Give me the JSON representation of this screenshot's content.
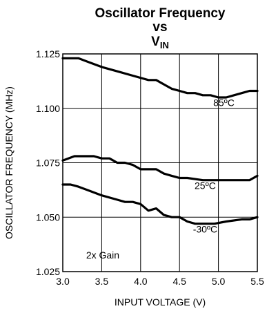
{
  "chart_data": {
    "type": "line",
    "title_line1": "Oscillator Frequency",
    "title_line2": "vs",
    "title_line3_main": "V",
    "title_line3_sub": "IN",
    "xlabel": "INPUT VOLTAGE (V)",
    "ylabel": "OSCILLATOR FREQUENCY (MHz)",
    "xlim": [
      3.0,
      5.5
    ],
    "ylim": [
      1.025,
      1.125
    ],
    "xticks": [
      "3.0",
      "3.5",
      "4.0",
      "4.5",
      "5.0",
      "5.5"
    ],
    "yticks": [
      "1.025",
      "1.050",
      "1.075",
      "1.100",
      "1.125"
    ],
    "grid": true,
    "annotation": "2x Gain",
    "series": [
      {
        "name": "85ºC",
        "x": [
          3.0,
          3.2,
          3.35,
          3.5,
          3.7,
          3.9,
          4.1,
          4.2,
          4.3,
          4.4,
          4.5,
          4.6,
          4.7,
          4.8,
          4.9,
          5.0,
          5.1,
          5.2,
          5.3,
          5.4,
          5.5
        ],
        "y": [
          1.123,
          1.123,
          1.121,
          1.119,
          1.117,
          1.115,
          1.113,
          1.113,
          1.111,
          1.109,
          1.108,
          1.107,
          1.107,
          1.106,
          1.106,
          1.105,
          1.105,
          1.106,
          1.107,
          1.108,
          1.108
        ]
      },
      {
        "name": "25ºC",
        "x": [
          3.0,
          3.15,
          3.25,
          3.4,
          3.5,
          3.6,
          3.7,
          3.8,
          3.9,
          4.0,
          4.2,
          4.3,
          4.4,
          4.5,
          4.6,
          4.8,
          5.0,
          5.2,
          5.4,
          5.5
        ],
        "y": [
          1.076,
          1.078,
          1.078,
          1.078,
          1.077,
          1.077,
          1.075,
          1.075,
          1.074,
          1.072,
          1.072,
          1.07,
          1.069,
          1.068,
          1.068,
          1.067,
          1.067,
          1.067,
          1.067,
          1.069
        ]
      },
      {
        "name": "-30ºC",
        "x": [
          3.0,
          3.1,
          3.2,
          3.35,
          3.5,
          3.7,
          3.8,
          3.9,
          4.0,
          4.1,
          4.2,
          4.3,
          4.4,
          4.5,
          4.6,
          4.7,
          4.8,
          4.95,
          5.1,
          5.3,
          5.4,
          5.5
        ],
        "y": [
          1.065,
          1.065,
          1.064,
          1.062,
          1.06,
          1.058,
          1.057,
          1.057,
          1.056,
          1.053,
          1.054,
          1.051,
          1.05,
          1.05,
          1.048,
          1.047,
          1.047,
          1.047,
          1.048,
          1.049,
          1.049,
          1.05
        ]
      }
    ],
    "series_label_positions": [
      {
        "text": "85ºC",
        "x": 5.07,
        "y": 1.101
      },
      {
        "text": "25ºC",
        "x": 4.83,
        "y": 1.063
      },
      {
        "text": "-30ºC",
        "x": 4.83,
        "y": 1.043
      }
    ],
    "annotation_position": {
      "x": 3.3,
      "y": 1.031
    }
  }
}
